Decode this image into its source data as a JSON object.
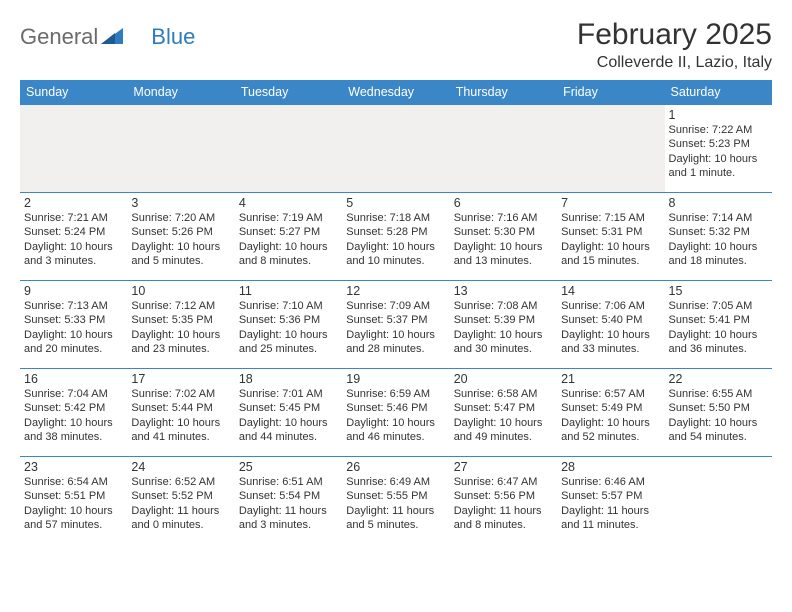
{
  "logo": {
    "text1": "General",
    "text2": "Blue"
  },
  "title": "February 2025",
  "location": "Colleverde II, Lazio, Italy",
  "day_labels": [
    "Sunday",
    "Monday",
    "Tuesday",
    "Wednesday",
    "Thursday",
    "Friday",
    "Saturday"
  ],
  "colors": {
    "header_bg": "#3b86c6",
    "header_text": "#ffffff",
    "row_border": "#3b86c6",
    "empty_bg": "#f1f0ee",
    "logo_gray": "#6b6b6b",
    "logo_blue": "#2f7bbf"
  },
  "weeks": [
    [
      null,
      null,
      null,
      null,
      null,
      null,
      {
        "n": "1",
        "sr": "7:22 AM",
        "ss": "5:23 PM",
        "dl": "10 hours and 1 minute."
      }
    ],
    [
      {
        "n": "2",
        "sr": "7:21 AM",
        "ss": "5:24 PM",
        "dl": "10 hours and 3 minutes."
      },
      {
        "n": "3",
        "sr": "7:20 AM",
        "ss": "5:26 PM",
        "dl": "10 hours and 5 minutes."
      },
      {
        "n": "4",
        "sr": "7:19 AM",
        "ss": "5:27 PM",
        "dl": "10 hours and 8 minutes."
      },
      {
        "n": "5",
        "sr": "7:18 AM",
        "ss": "5:28 PM",
        "dl": "10 hours and 10 minutes."
      },
      {
        "n": "6",
        "sr": "7:16 AM",
        "ss": "5:30 PM",
        "dl": "10 hours and 13 minutes."
      },
      {
        "n": "7",
        "sr": "7:15 AM",
        "ss": "5:31 PM",
        "dl": "10 hours and 15 minutes."
      },
      {
        "n": "8",
        "sr": "7:14 AM",
        "ss": "5:32 PM",
        "dl": "10 hours and 18 minutes."
      }
    ],
    [
      {
        "n": "9",
        "sr": "7:13 AM",
        "ss": "5:33 PM",
        "dl": "10 hours and 20 minutes."
      },
      {
        "n": "10",
        "sr": "7:12 AM",
        "ss": "5:35 PM",
        "dl": "10 hours and 23 minutes."
      },
      {
        "n": "11",
        "sr": "7:10 AM",
        "ss": "5:36 PM",
        "dl": "10 hours and 25 minutes."
      },
      {
        "n": "12",
        "sr": "7:09 AM",
        "ss": "5:37 PM",
        "dl": "10 hours and 28 minutes."
      },
      {
        "n": "13",
        "sr": "7:08 AM",
        "ss": "5:39 PM",
        "dl": "10 hours and 30 minutes."
      },
      {
        "n": "14",
        "sr": "7:06 AM",
        "ss": "5:40 PM",
        "dl": "10 hours and 33 minutes."
      },
      {
        "n": "15",
        "sr": "7:05 AM",
        "ss": "5:41 PM",
        "dl": "10 hours and 36 minutes."
      }
    ],
    [
      {
        "n": "16",
        "sr": "7:04 AM",
        "ss": "5:42 PM",
        "dl": "10 hours and 38 minutes."
      },
      {
        "n": "17",
        "sr": "7:02 AM",
        "ss": "5:44 PM",
        "dl": "10 hours and 41 minutes."
      },
      {
        "n": "18",
        "sr": "7:01 AM",
        "ss": "5:45 PM",
        "dl": "10 hours and 44 minutes."
      },
      {
        "n": "19",
        "sr": "6:59 AM",
        "ss": "5:46 PM",
        "dl": "10 hours and 46 minutes."
      },
      {
        "n": "20",
        "sr": "6:58 AM",
        "ss": "5:47 PM",
        "dl": "10 hours and 49 minutes."
      },
      {
        "n": "21",
        "sr": "6:57 AM",
        "ss": "5:49 PM",
        "dl": "10 hours and 52 minutes."
      },
      {
        "n": "22",
        "sr": "6:55 AM",
        "ss": "5:50 PM",
        "dl": "10 hours and 54 minutes."
      }
    ],
    [
      {
        "n": "23",
        "sr": "6:54 AM",
        "ss": "5:51 PM",
        "dl": "10 hours and 57 minutes."
      },
      {
        "n": "24",
        "sr": "6:52 AM",
        "ss": "5:52 PM",
        "dl": "11 hours and 0 minutes."
      },
      {
        "n": "25",
        "sr": "6:51 AM",
        "ss": "5:54 PM",
        "dl": "11 hours and 3 minutes."
      },
      {
        "n": "26",
        "sr": "6:49 AM",
        "ss": "5:55 PM",
        "dl": "11 hours and 5 minutes."
      },
      {
        "n": "27",
        "sr": "6:47 AM",
        "ss": "5:56 PM",
        "dl": "11 hours and 8 minutes."
      },
      {
        "n": "28",
        "sr": "6:46 AM",
        "ss": "5:57 PM",
        "dl": "11 hours and 11 minutes."
      },
      null
    ]
  ],
  "labels": {
    "sunrise": "Sunrise:",
    "sunset": "Sunset:",
    "daylight": "Daylight:"
  }
}
